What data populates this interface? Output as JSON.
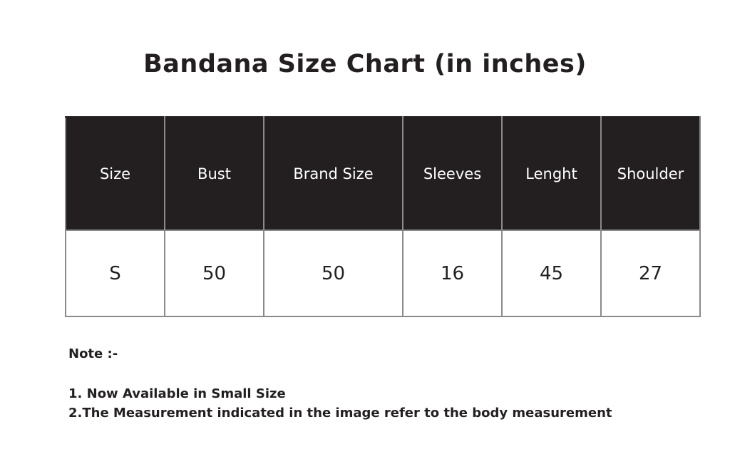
{
  "title": "Bandana Size Chart (in inches)",
  "table": {
    "headers": [
      "Size",
      "Bust",
      "Brand Size",
      "Sleeves",
      "Lenght",
      "Shoulder"
    ],
    "rows": [
      [
        "S",
        "50",
        "50",
        "16",
        "45",
        "27"
      ]
    ]
  },
  "notes": {
    "heading": "Note :-",
    "items": [
      "1. Now Available in Small Size",
      "2.The Measurement indicated in the image refer to the body measurement"
    ]
  },
  "colors": {
    "header_bg": "#231f20",
    "border": "#8a8a8a"
  }
}
